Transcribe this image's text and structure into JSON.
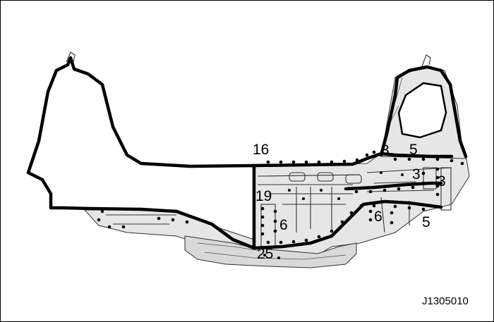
{
  "diagram": {
    "callouts": {
      "c16": "16",
      "c3a": "3",
      "c5a": "5",
      "c3b": "3",
      "c3c": "3",
      "c19": "19",
      "c6a": "6",
      "c6b": "6",
      "c5b": "5",
      "c25": "25"
    },
    "figure_code": "J1305010"
  }
}
